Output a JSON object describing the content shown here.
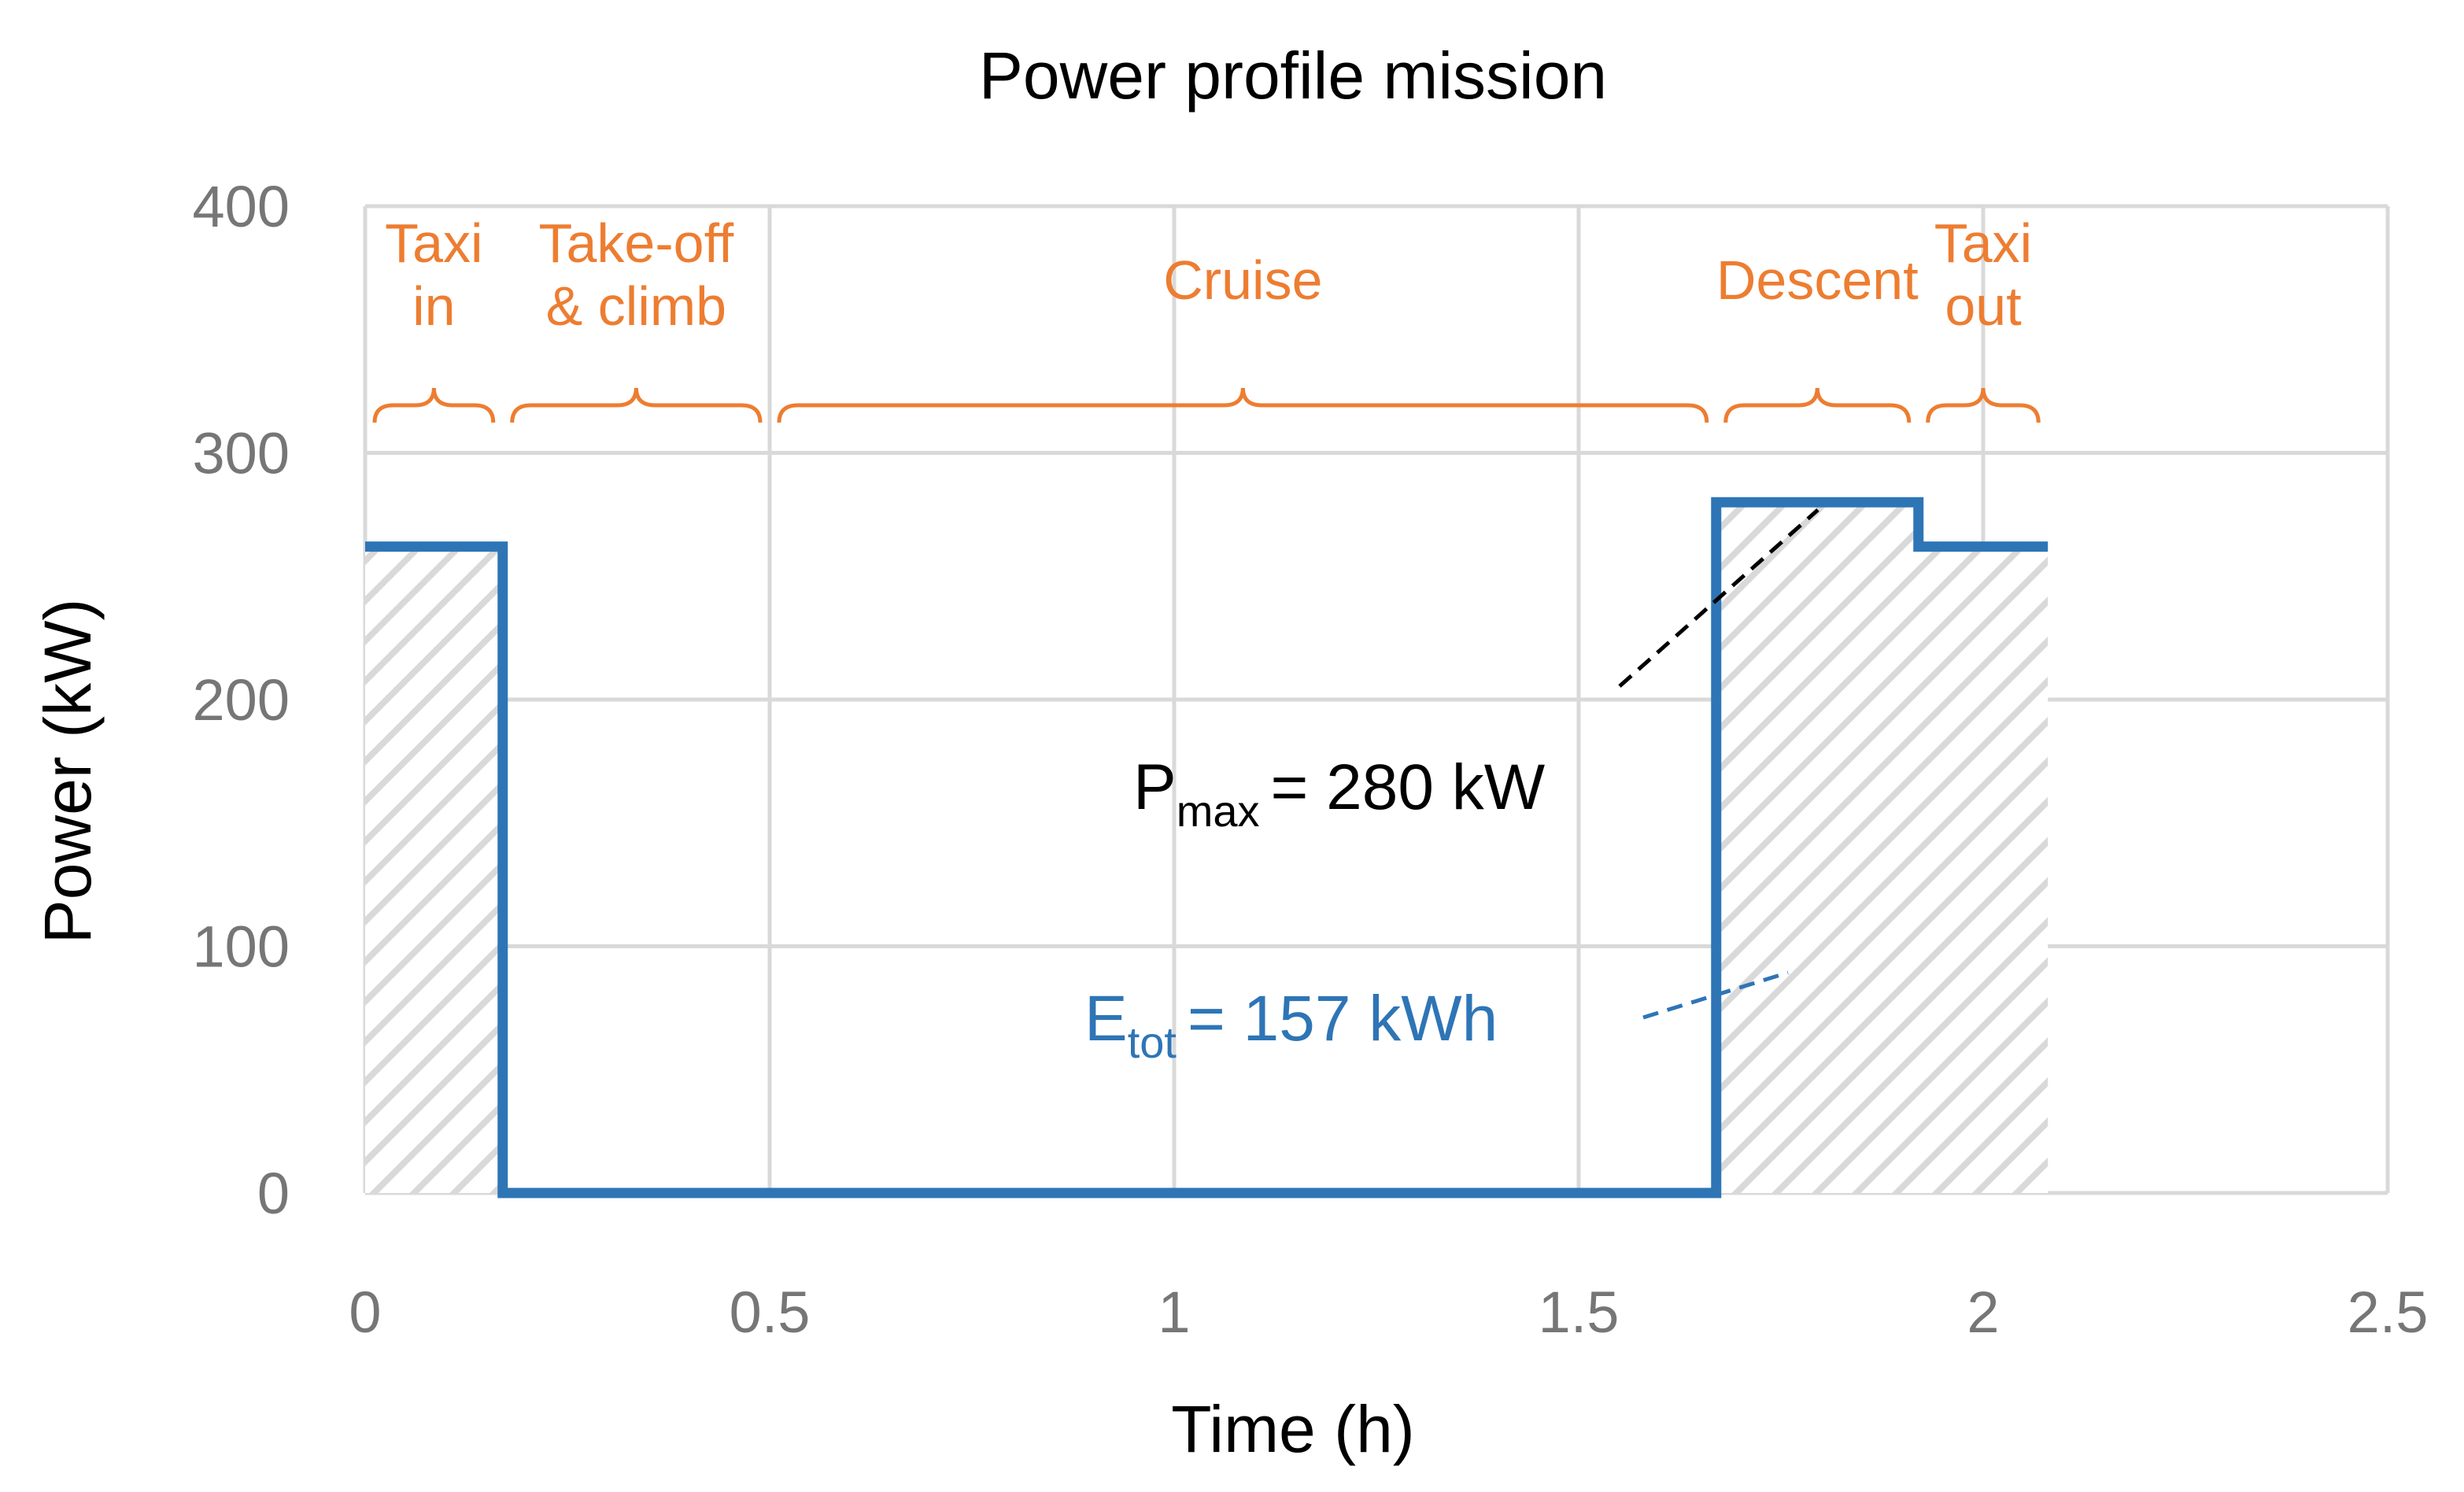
{
  "chart_data": {
    "type": "line",
    "title": "Power profile mission",
    "xlabel": "Time (h)",
    "ylabel": "Power (kW)",
    "xlim": [
      0,
      2.5
    ],
    "ylim": [
      0,
      400
    ],
    "xticks": [
      0,
      0.5,
      1,
      1.5,
      2,
      2.5
    ],
    "xtick_labels": [
      "0",
      "0.5",
      "1",
      "1.5",
      "2",
      "2.5"
    ],
    "yticks": [
      0,
      100,
      200,
      300,
      400
    ],
    "ytick_labels": [
      "0",
      "100",
      "200",
      "300",
      "400"
    ],
    "grid": true,
    "series": [
      {
        "type": "step",
        "color": "#2E75B6",
        "x": [
          0,
          0.17,
          0.17,
          1.67,
          1.67,
          1.92,
          1.92,
          2.08
        ],
        "y": [
          262,
          262,
          0,
          0,
          280,
          280,
          262,
          262
        ]
      }
    ],
    "hatch_fill": {
      "color": "#D9D9D9",
      "x": [
        0,
        0.17,
        0.17,
        1.67,
        1.67,
        1.92,
        1.92,
        2.08
      ],
      "y": [
        262,
        262,
        0,
        0,
        280,
        280,
        262,
        262
      ]
    },
    "phases": [
      {
        "lines": [
          "Taxi",
          "in"
        ],
        "start": 0,
        "end": 0.17
      },
      {
        "lines": [
          "Take-off",
          "& climb"
        ],
        "start": 0.17,
        "end": 0.5
      },
      {
        "lines": [
          "Cruise"
        ],
        "start": 0.5,
        "end": 1.67
      },
      {
        "lines": [
          "Descent"
        ],
        "start": 1.67,
        "end": 1.92
      },
      {
        "lines": [
          "Taxi",
          "out"
        ],
        "start": 1.92,
        "end": 2.08
      }
    ],
    "phase_color": "#ED7D31",
    "annotations": {
      "pmax": {
        "symbol": "P",
        "sub": "max",
        "text": "= 280 kW",
        "color": "#000000"
      },
      "etot": {
        "symbol": "E",
        "sub": "tot",
        "text": "= 157 kWh",
        "color": "#2E75B6"
      }
    }
  }
}
